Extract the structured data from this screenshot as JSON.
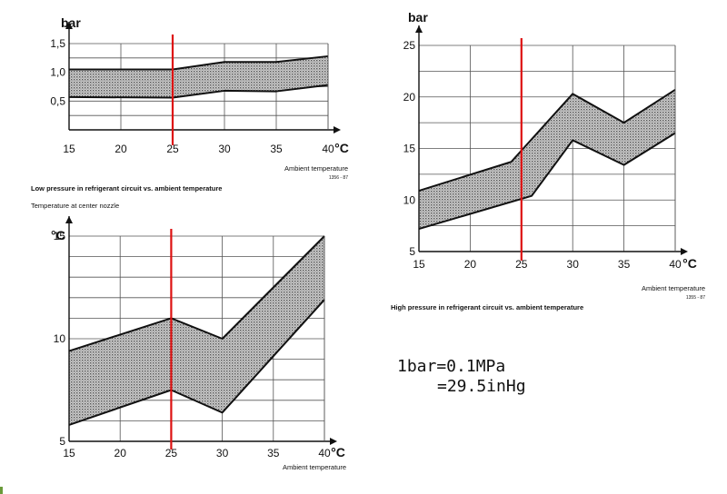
{
  "chart_data": [
    {
      "type": "area",
      "id": "low_pressure",
      "title": "Low pressure in refrigerant circuit vs. ambient temperature",
      "y_unit": "bar",
      "x_unit": "°C",
      "x_caption": "Ambient temperature",
      "figure_code": "1356 - 87",
      "x": [
        15,
        25,
        30,
        35,
        40
      ],
      "upper": [
        1.05,
        1.05,
        1.18,
        1.18,
        1.28
      ],
      "lower": [
        0.57,
        0.56,
        0.68,
        0.67,
        0.78
      ],
      "xlim": [
        15,
        40
      ],
      "ylim": [
        0,
        1.5
      ],
      "x_ticks": [
        "15",
        "20",
        "25",
        "30",
        "35",
        "40"
      ],
      "y_ticks": [
        "0,5",
        "1,0",
        "1,5"
      ],
      "y_tick_values": [
        0.5,
        1.0,
        1.5
      ],
      "y_grid": [
        0.25,
        0.5,
        0.75,
        1.0,
        1.25
      ],
      "marker_x": 25,
      "grid": true
    },
    {
      "type": "area",
      "id": "high_pressure",
      "title": "High pressure in refrigerant circuit vs. ambient temperature",
      "y_unit": "bar",
      "x_unit": "°C",
      "x_caption": "Ambient temperature",
      "figure_code": "1355 - 87",
      "x_upper": [
        15,
        24,
        30,
        35,
        40
      ],
      "upper": [
        10.9,
        13.7,
        20.3,
        17.5,
        20.7
      ],
      "x_lower": [
        15,
        26,
        30,
        35,
        40
      ],
      "lower": [
        7.2,
        10.4,
        15.8,
        13.4,
        16.5
      ],
      "xlim": [
        15,
        40
      ],
      "ylim": [
        5,
        25
      ],
      "x_ticks": [
        "15",
        "20",
        "25",
        "30",
        "35",
        "40"
      ],
      "y_ticks": [
        "5",
        "10",
        "15",
        "20",
        "25"
      ],
      "y_tick_values": [
        5,
        10,
        15,
        20,
        25
      ],
      "y_grid": [
        5,
        7.5,
        10,
        12.5,
        15,
        17.5,
        20,
        22.5
      ],
      "marker_x": 25,
      "grid": true
    },
    {
      "type": "area",
      "id": "nozzle_temp",
      "title": "Temperature at center nozzle",
      "y_unit": "°C",
      "x_unit": "°C",
      "x_caption": "Ambient temperature",
      "x": [
        15,
        25,
        30,
        40
      ],
      "upper": [
        9.4,
        11.0,
        10.0,
        15.0
      ],
      "lower": [
        5.8,
        7.5,
        6.4,
        11.9
      ],
      "xlim": [
        15,
        40
      ],
      "ylim": [
        5,
        15
      ],
      "x_ticks": [
        "15",
        "20",
        "25",
        "30",
        "35",
        "40"
      ],
      "y_ticks": [
        "5",
        "10",
        "15"
      ],
      "y_tick_values": [
        5,
        10,
        15
      ],
      "y_grid": [
        6,
        7,
        8,
        9,
        10,
        11,
        12,
        13,
        14
      ],
      "marker_x": 25,
      "grid": true
    }
  ],
  "note": {
    "line1": "1bar=0.1MPa",
    "line2": "=29.5inHg"
  },
  "colors": {
    "marker": "#dd1111",
    "band": "#9a9a9a"
  }
}
